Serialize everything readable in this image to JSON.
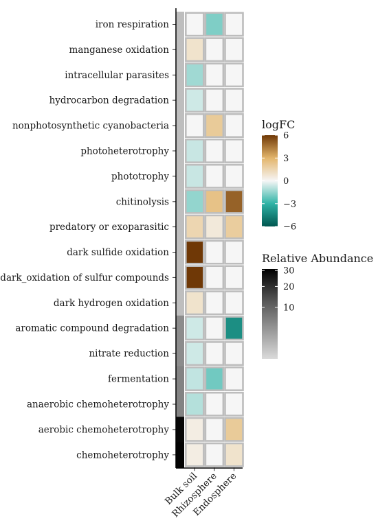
{
  "chart_data": {
    "type": "heatmap",
    "title": "",
    "xlabel": "",
    "ylabel": "",
    "columns": [
      "Bulk soil",
      "Rhizosphere",
      "Endosphere"
    ],
    "rows": [
      "iron respiration",
      "manganese oxidation",
      "intracellular parasites",
      "hydrocarbon degradation",
      "nonphotosynthetic cyanobacteria",
      "photoheterotrophy",
      "phototrophy",
      "chitinolysis",
      "predatory or exoparasitic",
      "dark sulfide oxidation",
      "dark_oxidation of sulfur compounds",
      "dark hydrogen oxidation",
      "aromatic compound degradation",
      "nitrate reduction",
      "fermentation",
      "anaerobic chemoheterotrophy",
      "aerobic chemoheterotrophy",
      "chemoheterotrophy"
    ],
    "logFC": [
      [
        0,
        -1.8,
        0
      ],
      [
        0.9,
        0,
        0
      ],
      [
        -1.3,
        0,
        0
      ],
      [
        -0.6,
        0,
        0
      ],
      [
        0,
        2.0,
        0
      ],
      [
        -0.7,
        0,
        0
      ],
      [
        -0.7,
        0,
        0
      ],
      [
        -1.5,
        2.4,
        5.0
      ],
      [
        1.5,
        0.6,
        1.9
      ],
      [
        6.0,
        0,
        0
      ],
      [
        6.0,
        0,
        0
      ],
      [
        0.9,
        0,
        0
      ],
      [
        -0.6,
        0,
        -4.2
      ],
      [
        -0.6,
        0,
        0
      ],
      [
        -0.8,
        -2.0,
        0
      ],
      [
        -1.0,
        0,
        0
      ],
      [
        0.4,
        0,
        2.0
      ],
      [
        0.4,
        0,
        0.9
      ]
    ],
    "relative_abundance": [
      0.5,
      0.5,
      0.5,
      0.5,
      0.5,
      0.5,
      0.5,
      0.5,
      0.5,
      0.5,
      0.5,
      0.5,
      4,
      4,
      5,
      5,
      30,
      31
    ],
    "legend_logFC": {
      "title": "logFC",
      "range": [
        -6,
        6
      ],
      "ticks": [
        6,
        3,
        0,
        -3,
        -6
      ],
      "tick_labels": [
        "6",
        "3",
        "0",
        "−3",
        "−6"
      ],
      "colors": {
        "neg_max": "#00564f",
        "neg_mid": "#2fb3a6",
        "zero": "#f6f6f6",
        "pos_mid": "#e3b56b",
        "pos_max": "#6f3806"
      }
    },
    "legend_abundance": {
      "title": "Relative Abundance",
      "range": [
        0,
        32
      ],
      "ticks": [
        30,
        20,
        10
      ],
      "tick_labels": [
        "30",
        "20",
        "10"
      ],
      "colors": {
        "low": "#d9d9d9",
        "high": "#000000"
      }
    },
    "legend_placement": "right",
    "grid": false
  }
}
